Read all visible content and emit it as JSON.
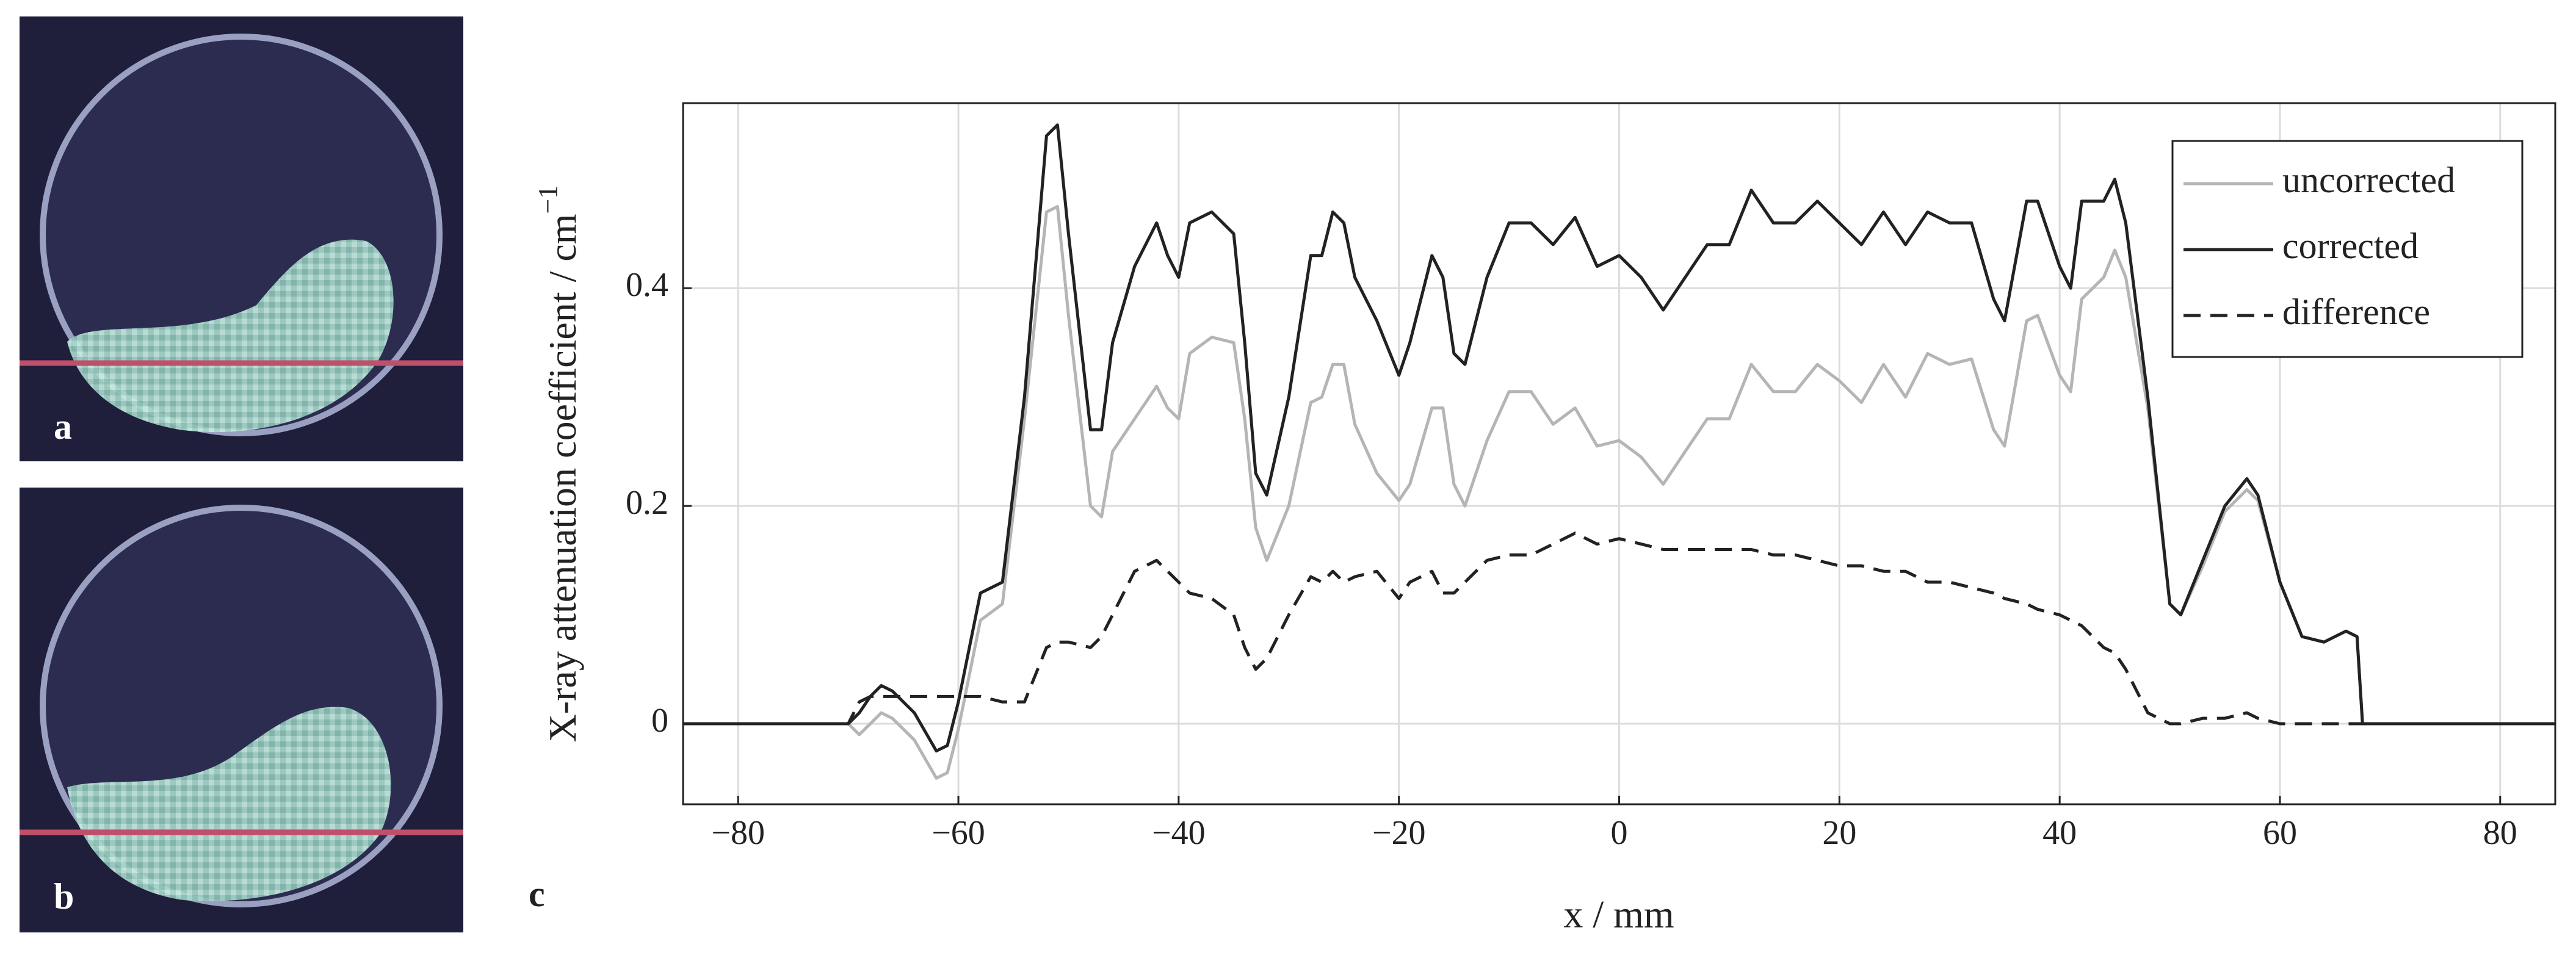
{
  "figure": {
    "panels": [
      {
        "label": "a"
      },
      {
        "label": "b"
      }
    ],
    "chart_label": "c"
  },
  "chart_data": {
    "type": "line",
    "xlabel": "x / mm",
    "ylabel": "X-ray attenuation coefficient / cm",
    "ylabel_superscript": "−1",
    "x": [
      -85,
      -70,
      -69,
      -68,
      -67,
      -66,
      -64,
      -62,
      -61,
      -60,
      -58,
      -56,
      -54,
      -52,
      -51,
      -50,
      -48,
      -47,
      -46,
      -44,
      -42,
      -41,
      -40,
      -39,
      -37,
      -35,
      -34,
      -33,
      -32,
      -30,
      -28,
      -27,
      -26,
      -25,
      -24,
      -22,
      -20,
      -19,
      -17,
      -16,
      -15,
      -14,
      -12,
      -10,
      -8,
      -6,
      -4,
      -2,
      0,
      2,
      4,
      6,
      8,
      10,
      12,
      14,
      16,
      18,
      20,
      22,
      24,
      26,
      28,
      30,
      32,
      34,
      35,
      37,
      38,
      40,
      41,
      42,
      44,
      45,
      46,
      48,
      50,
      51,
      53,
      55,
      57,
      58,
      60,
      62,
      64,
      66,
      67,
      67.5,
      85
    ],
    "series": [
      {
        "name": "uncorrected",
        "color": "#b5b5b5",
        "line_style": "solid",
        "values": [
          0,
          0,
          -0.01,
          0,
          0.01,
          0.005,
          -0.015,
          -0.05,
          -0.045,
          -0.005,
          0.095,
          0.11,
          0.28,
          0.47,
          0.475,
          0.375,
          0.2,
          0.19,
          0.25,
          0.28,
          0.31,
          0.29,
          0.28,
          0.34,
          0.355,
          0.35,
          0.28,
          0.18,
          0.15,
          0.2,
          0.295,
          0.3,
          0.33,
          0.33,
          0.275,
          0.23,
          0.205,
          0.22,
          0.29,
          0.29,
          0.22,
          0.2,
          0.26,
          0.305,
          0.305,
          0.275,
          0.29,
          0.255,
          0.26,
          0.245,
          0.22,
          0.25,
          0.28,
          0.28,
          0.33,
          0.305,
          0.305,
          0.33,
          0.315,
          0.295,
          0.33,
          0.3,
          0.34,
          0.33,
          0.335,
          0.27,
          0.255,
          0.37,
          0.375,
          0.32,
          0.305,
          0.39,
          0.41,
          0.435,
          0.41,
          0.29,
          0.11,
          0.1,
          0.145,
          0.195,
          0.215,
          0.205,
          0.13,
          0.08,
          0.075,
          0.085,
          0.08,
          0,
          0
        ]
      },
      {
        "name": "corrected",
        "color": "#222222",
        "line_style": "solid",
        "values": [
          0,
          0,
          0.01,
          0.025,
          0.035,
          0.03,
          0.01,
          -0.025,
          -0.02,
          0.02,
          0.12,
          0.13,
          0.3,
          0.54,
          0.55,
          0.45,
          0.27,
          0.27,
          0.35,
          0.42,
          0.46,
          0.43,
          0.41,
          0.46,
          0.47,
          0.45,
          0.35,
          0.23,
          0.21,
          0.3,
          0.43,
          0.43,
          0.47,
          0.46,
          0.41,
          0.37,
          0.32,
          0.35,
          0.43,
          0.41,
          0.34,
          0.33,
          0.41,
          0.46,
          0.46,
          0.44,
          0.465,
          0.42,
          0.43,
          0.41,
          0.38,
          0.41,
          0.44,
          0.44,
          0.49,
          0.46,
          0.46,
          0.48,
          0.46,
          0.44,
          0.47,
          0.44,
          0.47,
          0.46,
          0.46,
          0.39,
          0.37,
          0.48,
          0.48,
          0.42,
          0.4,
          0.48,
          0.48,
          0.5,
          0.46,
          0.3,
          0.11,
          0.1,
          0.15,
          0.2,
          0.225,
          0.21,
          0.13,
          0.08,
          0.075,
          0.085,
          0.08,
          0,
          0
        ]
      },
      {
        "name": "difference",
        "color": "#222222",
        "line_style": "dashed",
        "values": [
          0,
          0,
          0.02,
          0.025,
          0.025,
          0.025,
          0.025,
          0.025,
          0.025,
          0.025,
          0.025,
          0.02,
          0.02,
          0.07,
          0.075,
          0.075,
          0.07,
          0.08,
          0.1,
          0.14,
          0.15,
          0.14,
          0.13,
          0.12,
          0.115,
          0.1,
          0.07,
          0.05,
          0.06,
          0.1,
          0.135,
          0.13,
          0.14,
          0.13,
          0.135,
          0.14,
          0.115,
          0.13,
          0.14,
          0.12,
          0.12,
          0.13,
          0.15,
          0.155,
          0.155,
          0.165,
          0.175,
          0.165,
          0.17,
          0.165,
          0.16,
          0.16,
          0.16,
          0.16,
          0.16,
          0.155,
          0.155,
          0.15,
          0.145,
          0.145,
          0.14,
          0.14,
          0.13,
          0.13,
          0.125,
          0.12,
          0.115,
          0.11,
          0.105,
          0.1,
          0.095,
          0.09,
          0.07,
          0.065,
          0.05,
          0.01,
          0,
          0,
          0.005,
          0.005,
          0.01,
          0.005,
          0,
          0,
          0,
          0,
          0,
          0,
          0
        ]
      }
    ],
    "xlim": [
      -85,
      85
    ],
    "ylim": [
      -0.074,
      0.57
    ],
    "xticks": [
      {
        "value": -80,
        "label": "−80"
      },
      {
        "value": -60,
        "label": "−60"
      },
      {
        "value": -40,
        "label": "−40"
      },
      {
        "value": -20,
        "label": "−20"
      },
      0,
      20,
      40,
      60,
      80
    ],
    "yticks": [
      0,
      0.2,
      0.4
    ],
    "grid": true,
    "legend_position": "upper right"
  }
}
